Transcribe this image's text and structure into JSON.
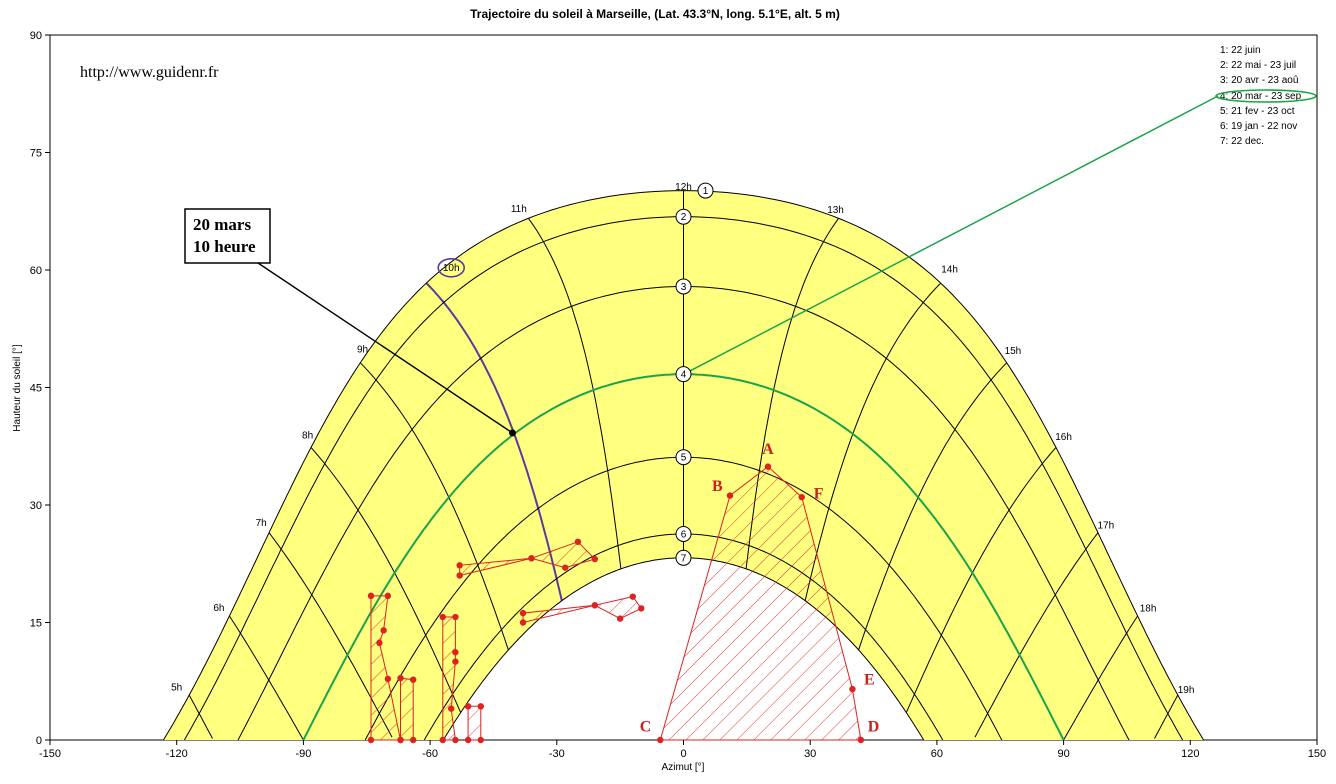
{
  "colors": {
    "band_fill": "#ffff80",
    "grid": "#000000",
    "highlight_curve": "#1aa34a",
    "highlight_hour": "#5a3aa0",
    "obstacle": "#dd2222"
  },
  "chart_data": {
    "type": "line",
    "title": "Trajectoire du soleil  à  Marseille, (Lat. 43.3°N, long. 5.1°E, alt. 5 m)",
    "xlabel": "Azimut [°]",
    "ylabel": "Hauteur du soleil [°]",
    "xlim": [
      -150,
      150
    ],
    "ylim": [
      0,
      90
    ],
    "xticks": [
      -150,
      -120,
      -90,
      -60,
      -30,
      0,
      30,
      60,
      90,
      120,
      150
    ],
    "yticks": [
      0,
      15,
      30,
      45,
      60,
      75,
      90
    ],
    "url_text": "http://www.guidenr.fr",
    "legend": [
      "1: 22 juin",
      "2: 22 mai - 23 juil",
      "3: 20 avr - 23 aoû",
      "4: 20 mar - 23 sep",
      "5: 21 fev - 23 oct",
      "6: 19 jan - 22 nov",
      "7: 22 dec."
    ],
    "legend_position": "top-right",
    "highlighted_curve": 4,
    "highlighted_hour": "10h",
    "annotation": {
      "line1": "20 mars",
      "line2": "10 heure",
      "point": [
        -40.5,
        39.2
      ]
    },
    "hour_labels": [
      {
        "label": "5h",
        "az": -120,
        "alt": 6.3
      },
      {
        "label": "6h",
        "az": -110,
        "alt": 16.5
      },
      {
        "label": "7h",
        "az": -100,
        "alt": 27.3
      },
      {
        "label": "8h",
        "az": -89,
        "alt": 38.5
      },
      {
        "label": "9h",
        "az": -76,
        "alt": 49.5
      },
      {
        "label": "10h",
        "az": -55,
        "alt": 59.9
      },
      {
        "label": "11h",
        "az": -39,
        "alt": 67.4
      },
      {
        "label": "12h",
        "az": 0,
        "alt": 70.2
      },
      {
        "label": "13h",
        "az": 36,
        "alt": 67.3
      },
      {
        "label": "14h",
        "az": 63,
        "alt": 59.7
      },
      {
        "label": "15h",
        "az": 78,
        "alt": 49.3
      },
      {
        "label": "16h",
        "az": 90,
        "alt": 38.3
      },
      {
        "label": "17h",
        "az": 100,
        "alt": 27.0
      },
      {
        "label": "18h",
        "az": 110,
        "alt": 16.4
      },
      {
        "label": "19h",
        "az": 119,
        "alt": 6.0
      }
    ],
    "declinations": [
      23.44,
      20.1,
      11.2,
      0.0,
      -10.6,
      -20.4,
      -23.44
    ],
    "latitude": 43.3,
    "obstacle_letters": [
      {
        "label": "A",
        "az": 20,
        "alt": 36.5
      },
      {
        "label": "B",
        "az": 8,
        "alt": 31.8
      },
      {
        "label": "F",
        "az": 32,
        "alt": 30.8
      },
      {
        "label": "E",
        "az": 44,
        "alt": 7.1
      },
      {
        "label": "C",
        "az": -9,
        "alt": 1.1
      },
      {
        "label": "D",
        "az": 45,
        "alt": 1.1
      }
    ],
    "obstacles": [
      [
        [
          -5.5,
          0
        ],
        [
          11,
          31.2
        ],
        [
          20,
          34.9
        ],
        [
          28,
          31.0
        ],
        [
          40,
          6.5
        ],
        [
          42,
          0
        ]
      ],
      [
        [
          -67,
          0
        ],
        [
          -67,
          7.9
        ],
        [
          -64,
          7.7
        ],
        [
          -64,
          0
        ]
      ],
      [
        [
          -74,
          0
        ],
        [
          -74,
          18.4
        ],
        [
          -70,
          18.4
        ],
        [
          -71,
          14.0
        ],
        [
          -72,
          12.4
        ],
        [
          -70,
          7.8
        ],
        [
          -67,
          0
        ]
      ],
      [
        [
          -57,
          0
        ],
        [
          -57,
          15.7
        ],
        [
          -54,
          15.7
        ],
        [
          -54,
          11.2
        ],
        [
          -54,
          10.0
        ],
        [
          -55,
          4.0
        ],
        [
          -54,
          0
        ]
      ],
      [
        [
          -48,
          0
        ],
        [
          -48,
          4.3
        ],
        [
          -51,
          4.3
        ],
        [
          -51,
          0
        ]
      ],
      [
        [
          -53,
          21.0
        ],
        [
          -53,
          22.3
        ],
        [
          -36,
          23.2
        ],
        [
          -25,
          25.3
        ],
        [
          -21,
          23.1
        ],
        [
          -28,
          22.0
        ],
        [
          -36,
          23.2
        ]
      ],
      [
        [
          -38,
          15.0
        ],
        [
          -38,
          16.2
        ],
        [
          -21,
          17.2
        ],
        [
          -12,
          18.3
        ],
        [
          -10,
          16.8
        ],
        [
          -15,
          15.5
        ],
        [
          -21,
          17.2
        ]
      ]
    ]
  }
}
